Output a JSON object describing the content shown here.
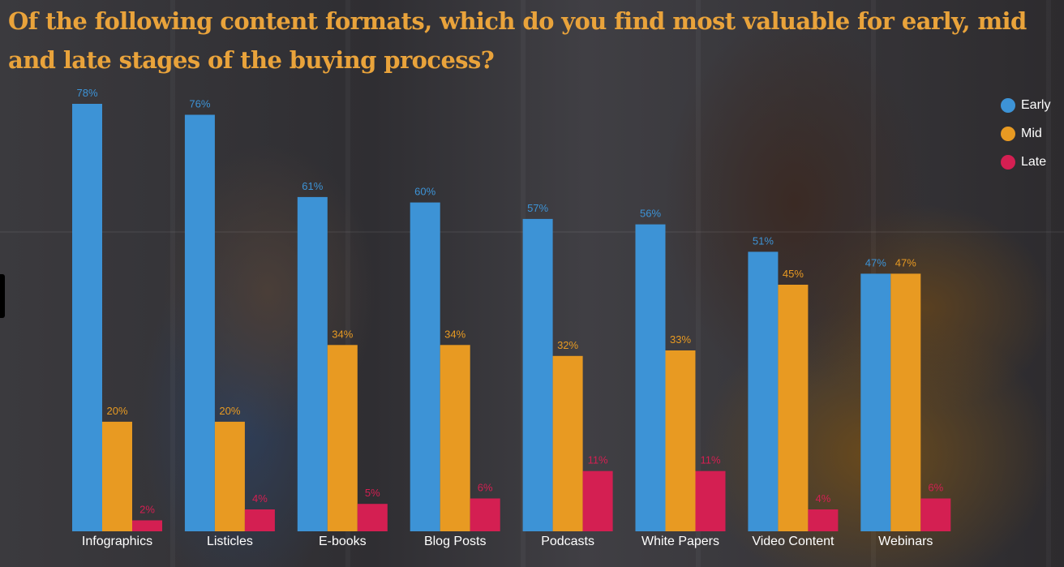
{
  "title": "Of the following content formats, which do you find most valuable for early, mid and late stages of the buying process?",
  "colors": {
    "early": "#3d93d6",
    "mid": "#e89a22",
    "late": "#d41f52"
  },
  "chart_data": {
    "type": "bar",
    "title": "Of the following content formats, which do you find most valuable for early, mid and late stages of the buying process?",
    "categories": [
      "Infographics",
      "Listicles",
      "E-books",
      "Blog Posts",
      "Podcasts",
      "White Papers",
      "Video Content",
      "Webinars"
    ],
    "series": [
      {
        "name": "Early",
        "color": "#3d93d6",
        "values": [
          78,
          76,
          61,
          60,
          57,
          56,
          51,
          47
        ]
      },
      {
        "name": "Mid",
        "color": "#e89a22",
        "values": [
          20,
          20,
          34,
          34,
          32,
          33,
          45,
          47
        ]
      },
      {
        "name": "Late",
        "color": "#d41f52",
        "values": [
          2,
          4,
          5,
          6,
          11,
          11,
          4,
          6
        ]
      }
    ],
    "value_suffix": "%",
    "ylim": [
      0,
      78
    ],
    "grid": false,
    "legend_position": "top-right"
  },
  "legend": {
    "items": [
      {
        "label": "Early",
        "color": "#3d93d6"
      },
      {
        "label": "Mid",
        "color": "#e89a22"
      },
      {
        "label": "Late",
        "color": "#d41f52"
      }
    ]
  }
}
